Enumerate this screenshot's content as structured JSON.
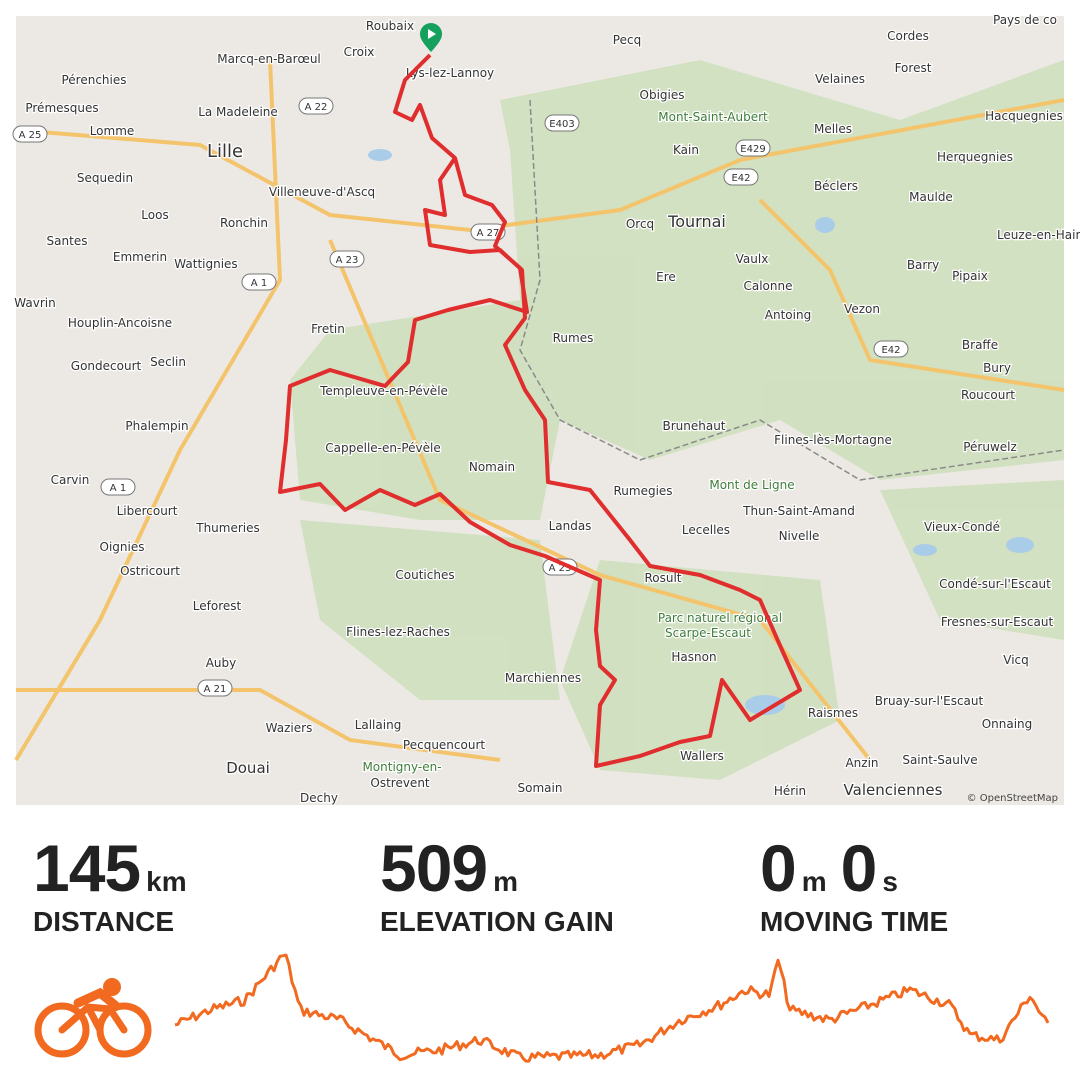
{
  "map": {
    "labels": [
      "Roubaix",
      "Pecq",
      "Cordes",
      "Pays de co",
      "Croix",
      "Marcq-en-Barœul",
      "Lys-lez-Lannoy",
      "Forest",
      "Velaines",
      "Pérenchies",
      "Obigies",
      "Mont-Saint-Aubert",
      "Prémesques",
      "La Madeleine",
      "Hacquegnies",
      "Melles",
      "Lomme",
      "Lille",
      "Kain",
      "Herquegnies",
      "Sequedin",
      "Villeneuve-d'Ascq",
      "Béclers",
      "Loos",
      "Ronchin",
      "Orcq",
      "Tournai",
      "Maulde",
      "Leuze-en-Hain",
      "Santes",
      "Emmerin",
      "Wattignies",
      "Vaulx",
      "Barry",
      "Pipaix",
      "Ere",
      "Calonne",
      "Wavrin",
      "Houplin-Ancoisne",
      "Fretin",
      "Antoing",
      "Vezon",
      "Rumes",
      "Braffe",
      "Gondecourt",
      "Seclin",
      "Bury",
      "Templeuve-en-Pévèle",
      "Roucourt",
      "Phalempin",
      "Brunehaut",
      "Flines-lès-Mortagne",
      "Cappelle-en-Pévèle",
      "Péruwelz",
      "Nomain",
      "Carvin",
      "Mont de Ligne",
      "Rumegies",
      "Libercourt",
      "Thun-Saint-Amand",
      "Thumeries",
      "Landas",
      "Lecelles",
      "Vieux-Condé",
      "Nivelle",
      "Oignies",
      "Ostricourt",
      "Coutiches",
      "Rosult",
      "Condé-sur-l'Escaut",
      "Leforest",
      "Parc naturel régional",
      "Scarpe-Escaut",
      "Fresnes-sur-Escaut",
      "Flines-lez-Raches",
      "Hasnon",
      "Vicq",
      "Auby",
      "Marchiennes",
      "Raismes",
      "Bruay-sur-l'Escaut",
      "Onnaing",
      "Lallaing",
      "Waziers",
      "Pecquencourt",
      "Wallers",
      "Anzin",
      "Saint-Saulve",
      "Douai",
      "Montigny-en-",
      "Ostrevent",
      "Somain",
      "Hérin",
      "Valenciennes",
      "Dechy"
    ],
    "road_shields": [
      "A 22",
      "A 25",
      "E403",
      "E429",
      "E42",
      "A 23",
      "A 1",
      "A 1",
      "A 21",
      "E42",
      "A 27",
      "A 23"
    ],
    "attribution": "© OpenStreetMap"
  },
  "stats": [
    {
      "value": "145",
      "unit": "km",
      "label": "DISTANCE"
    },
    {
      "value": "509",
      "unit": "m",
      "label": "ELEVATION GAIN"
    },
    {
      "value": "0",
      "unit": "m",
      "value2": "0",
      "unit2": "s",
      "label": "MOVING TIME"
    }
  ]
}
